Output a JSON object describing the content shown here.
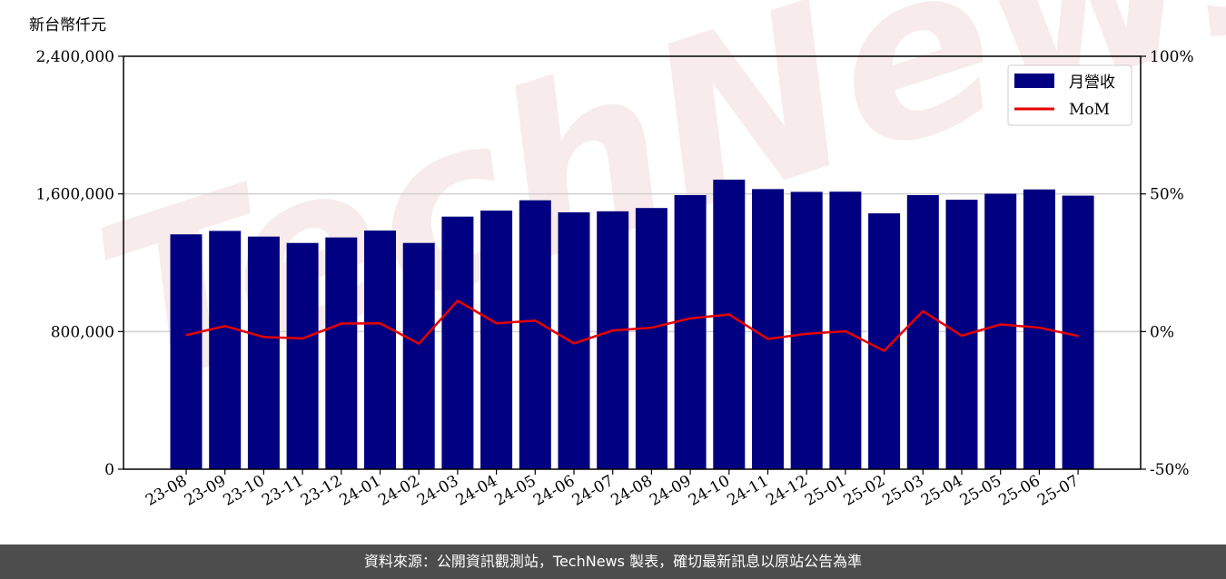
{
  "chart_data": {
    "type": "bar",
    "unit_label": "新台幣仟元",
    "categories": [
      "23-08",
      "23-09",
      "23-10",
      "23-11",
      "23-12",
      "24-01",
      "24-02",
      "24-03",
      "24-04",
      "24-05",
      "24-06",
      "24-07",
      "24-08",
      "24-09",
      "24-10",
      "24-11",
      "24-12",
      "25-01",
      "25-02",
      "25-03",
      "25-04",
      "25-05",
      "25-06",
      "25-07"
    ],
    "series": [
      {
        "name": "月營收",
        "kind": "bar",
        "axis": "left",
        "color": "#000080",
        "values": [
          1365000,
          1385000,
          1352000,
          1315000,
          1347000,
          1387000,
          1315000,
          1468000,
          1503000,
          1563000,
          1493000,
          1499000,
          1518000,
          1593000,
          1683000,
          1628000,
          1612000,
          1613000,
          1487000,
          1593000,
          1566000,
          1601000,
          1626000,
          1590000
        ]
      },
      {
        "name": "MoM",
        "kind": "line",
        "axis": "right",
        "color": "#e60000",
        "values": [
          -1.3,
          2.0,
          -2.0,
          -2.5,
          2.9,
          3.0,
          -4.4,
          11.2,
          3.0,
          4.0,
          -4.3,
          0.4,
          1.4,
          4.8,
          6.2,
          -2.7,
          -0.8,
          0.1,
          -7.0,
          7.4,
          -1.5,
          2.6,
          1.4,
          -1.6
        ]
      }
    ],
    "y_left": {
      "lim": [
        0,
        2400000
      ],
      "ticks": [
        "0",
        "800,000",
        "1,600,000",
        "2,400,000"
      ],
      "tick_values": [
        0,
        800000,
        1600000,
        2400000
      ]
    },
    "y_right": {
      "lim": [
        -50,
        100
      ],
      "ticks": [
        "-50%",
        "0%",
        "50%",
        "100%"
      ],
      "tick_values": [
        -50,
        0,
        50,
        100
      ]
    },
    "grid": "horizontal",
    "legend_position": "top-right"
  },
  "watermark": "TechNews",
  "footer": {
    "source_text": "資料來源：公開資訊觀測站，TechNews 製表，確切最新訊息以原站公告為準"
  }
}
